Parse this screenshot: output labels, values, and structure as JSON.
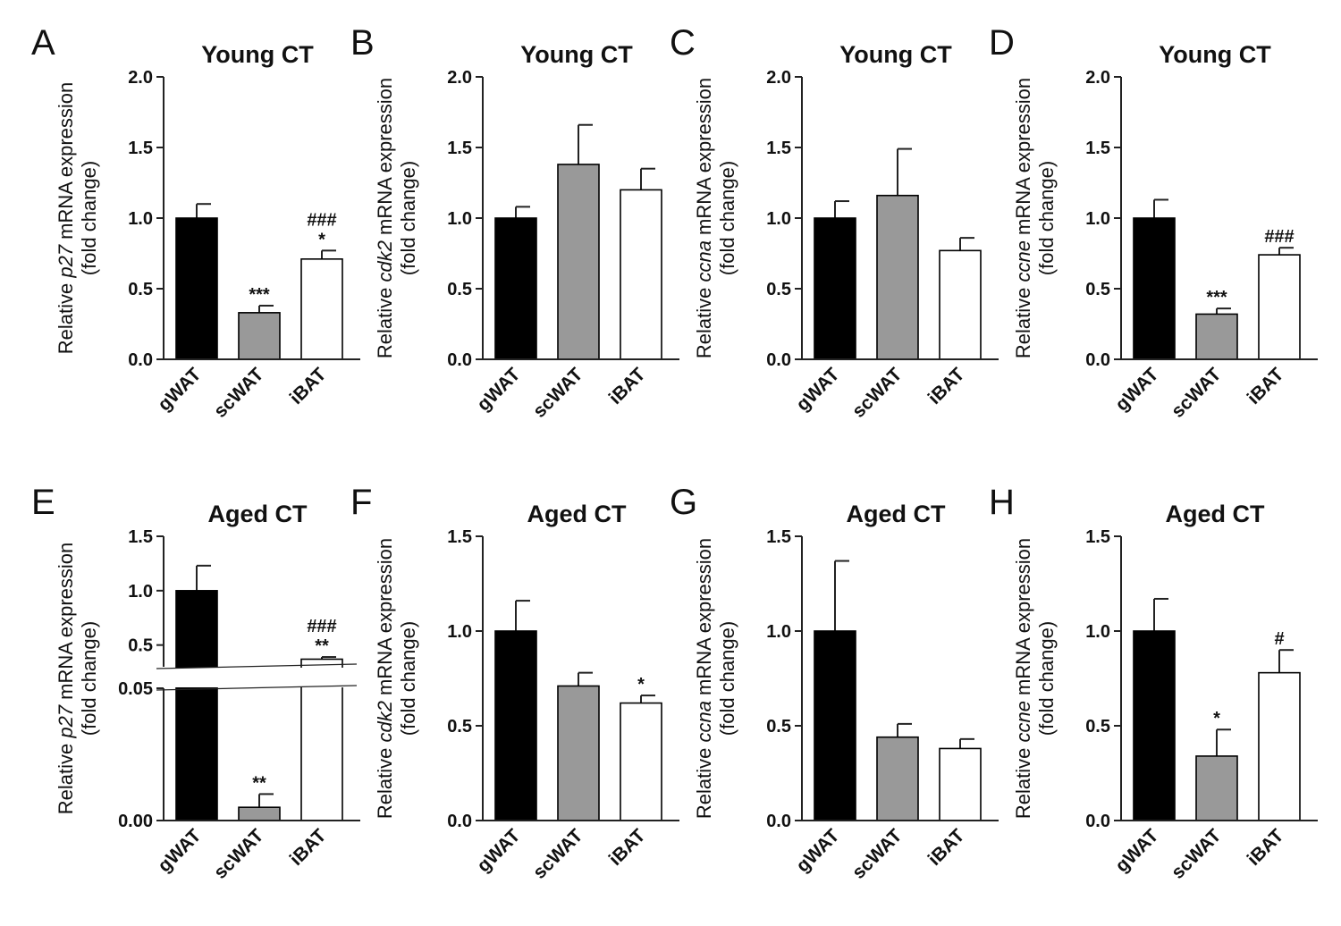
{
  "colors": {
    "black": "#000000",
    "gray": "#999999",
    "white": "#ffffff",
    "axis": "#222222"
  },
  "chart_data": [
    {
      "type": "bar",
      "letter": "A",
      "title": "Young CT",
      "ylabel_pre": "Relative ",
      "ylabel_gene": "p27",
      "ylabel_post": " mRNA expression",
      "ylabel_line2": "(fold change)",
      "categories": [
        "gWAT",
        "scWAT",
        "iBAT"
      ],
      "values": [
        1.0,
        0.33,
        0.71
      ],
      "errors": [
        0.1,
        0.05,
        0.06
      ],
      "ylim": [
        0,
        2.0
      ],
      "ticks": [
        0.0,
        0.5,
        1.0,
        1.5,
        2.0
      ],
      "tick_labels": [
        "0.0",
        "0.5",
        "1.0",
        "1.5",
        "2.0"
      ],
      "sig_top": [
        "",
        "",
        "###"
      ],
      "sig_bottom": [
        "",
        "***",
        "*"
      ]
    },
    {
      "type": "bar",
      "letter": "B",
      "title": "Young CT",
      "ylabel_pre": "Relative ",
      "ylabel_gene": "cdk2",
      "ylabel_post": " mRNA expression",
      "ylabel_line2": "(fold change)",
      "categories": [
        "gWAT",
        "scWAT",
        "iBAT"
      ],
      "values": [
        1.0,
        1.38,
        1.2
      ],
      "errors": [
        0.08,
        0.28,
        0.15
      ],
      "ylim": [
        0,
        2.0
      ],
      "ticks": [
        0.0,
        0.5,
        1.0,
        1.5,
        2.0
      ],
      "tick_labels": [
        "0.0",
        "0.5",
        "1.0",
        "1.5",
        "2.0"
      ],
      "sig_top": [
        "",
        "",
        ""
      ],
      "sig_bottom": [
        "",
        "",
        ""
      ]
    },
    {
      "type": "bar",
      "letter": "C",
      "title": "Young CT",
      "ylabel_pre": "Relative ",
      "ylabel_gene": "ccna",
      "ylabel_post": " mRNA expression",
      "ylabel_line2": "(fold change)",
      "categories": [
        "gWAT",
        "scWAT",
        "iBAT"
      ],
      "values": [
        1.0,
        1.16,
        0.77
      ],
      "errors": [
        0.12,
        0.33,
        0.09
      ],
      "ylim": [
        0,
        2.0
      ],
      "ticks": [
        0.0,
        0.5,
        1.0,
        1.5,
        2.0
      ],
      "tick_labels": [
        "0.0",
        "0.5",
        "1.0",
        "1.5",
        "2.0"
      ],
      "sig_top": [
        "",
        "",
        ""
      ],
      "sig_bottom": [
        "",
        "",
        ""
      ]
    },
    {
      "type": "bar",
      "letter": "D",
      "title": "Young CT",
      "ylabel_pre": "Relative ",
      "ylabel_gene": "ccne",
      "ylabel_post": " mRNA expression",
      "ylabel_line2": "(fold change)",
      "categories": [
        "gWAT",
        "scWAT",
        "iBAT"
      ],
      "values": [
        1.0,
        0.32,
        0.74
      ],
      "errors": [
        0.13,
        0.04,
        0.05
      ],
      "ylim": [
        0,
        2.0
      ],
      "ticks": [
        0.0,
        0.5,
        1.0,
        1.5,
        2.0
      ],
      "tick_labels": [
        "0.0",
        "0.5",
        "1.0",
        "1.5",
        "2.0"
      ],
      "sig_top": [
        "",
        "",
        "###"
      ],
      "sig_bottom": [
        "",
        "***",
        ""
      ]
    },
    {
      "type": "bar",
      "letter": "E",
      "title": "Aged CT",
      "ylabel_pre": "Relative ",
      "ylabel_gene": "p27",
      "ylabel_post": " mRNA expression",
      "ylabel_line2": "(fold change)",
      "categories": [
        "gWAT",
        "scWAT",
        "iBAT"
      ],
      "values": [
        1.0,
        0.005,
        0.37
      ],
      "errors": [
        0.23,
        0.005,
        0.02
      ],
      "broken_axis": true,
      "lower_range": [
        0,
        0.05
      ],
      "upper_range": [
        0.3,
        1.5
      ],
      "ticks": [
        0.0,
        0.05,
        0.5,
        1.0,
        1.5
      ],
      "tick_labels": [
        "0.00",
        "0.05",
        "0.5",
        "1.0",
        "1.5"
      ],
      "sig_top": [
        "",
        "",
        "###"
      ],
      "sig_bottom": [
        "",
        "**",
        "**"
      ]
    },
    {
      "type": "bar",
      "letter": "F",
      "title": "Aged CT",
      "ylabel_pre": "Relative ",
      "ylabel_gene": "cdk2",
      "ylabel_post": " mRNA expression",
      "ylabel_line2": "(fold change)",
      "categories": [
        "gWAT",
        "scWAT",
        "iBAT"
      ],
      "values": [
        1.0,
        0.71,
        0.62
      ],
      "errors": [
        0.16,
        0.07,
        0.04
      ],
      "ylim": [
        0,
        1.5
      ],
      "ticks": [
        0.0,
        0.5,
        1.0,
        1.5
      ],
      "tick_labels": [
        "0.0",
        "0.5",
        "1.0",
        "1.5"
      ],
      "sig_top": [
        "",
        "",
        ""
      ],
      "sig_bottom": [
        "",
        "",
        "*"
      ]
    },
    {
      "type": "bar",
      "letter": "G",
      "title": "Aged CT",
      "ylabel_pre": "Relative ",
      "ylabel_gene": "ccna",
      "ylabel_post": " mRNA expression",
      "ylabel_line2": "(fold change)",
      "categories": [
        "gWAT",
        "scWAT",
        "iBAT"
      ],
      "values": [
        1.0,
        0.44,
        0.38
      ],
      "errors": [
        0.37,
        0.07,
        0.05
      ],
      "ylim": [
        0,
        1.5
      ],
      "ticks": [
        0.0,
        0.5,
        1.0,
        1.5
      ],
      "tick_labels": [
        "0.0",
        "0.5",
        "1.0",
        "1.5"
      ],
      "sig_top": [
        "",
        "",
        ""
      ],
      "sig_bottom": [
        "",
        "",
        ""
      ]
    },
    {
      "type": "bar",
      "letter": "H",
      "title": "Aged CT",
      "ylabel_pre": "Relative ",
      "ylabel_gene": "ccne",
      "ylabel_post": " mRNA expression",
      "ylabel_line2": "(fold change)",
      "categories": [
        "gWAT",
        "scWAT",
        "iBAT"
      ],
      "values": [
        1.0,
        0.34,
        0.78
      ],
      "errors": [
        0.17,
        0.14,
        0.12
      ],
      "ylim": [
        0,
        1.5
      ],
      "ticks": [
        0.0,
        0.5,
        1.0,
        1.5
      ],
      "tick_labels": [
        "0.0",
        "0.5",
        "1.0",
        "1.5"
      ],
      "sig_top": [
        "",
        "",
        "#"
      ],
      "sig_bottom": [
        "",
        "*",
        ""
      ]
    }
  ]
}
